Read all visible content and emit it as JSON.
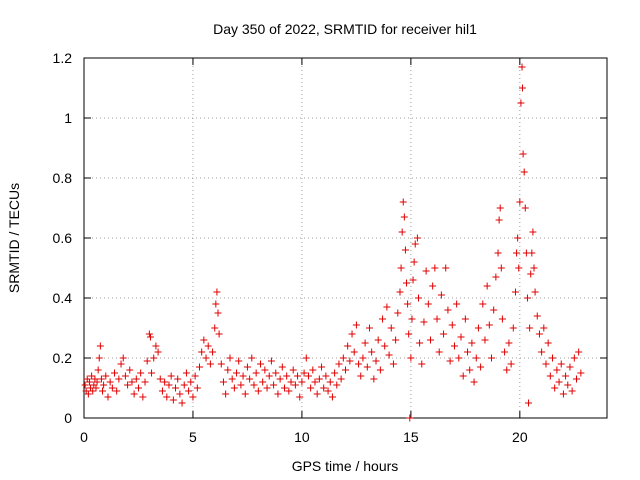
{
  "chart_data": {
    "type": "scatter",
    "title": "Day 350 of 2022, SRMTID for receiver hil1",
    "xlabel": "GPS time / hours",
    "ylabel": "SRMTID / TECUs",
    "xlim": [
      0,
      24
    ],
    "ylim": [
      0,
      1.2
    ],
    "xticks": [
      0,
      5,
      10,
      15,
      20
    ],
    "yticks": [
      0,
      0.2,
      0.4,
      0.6,
      0.8,
      1,
      1.2
    ],
    "ytick_labels": [
      "0",
      "0.2",
      "0.4",
      "0.6",
      "0.8",
      "1",
      "1.2"
    ],
    "grid": true,
    "marker": "plus",
    "color": "#e00000",
    "series": [
      {
        "name": "hil1",
        "points": [
          [
            0.05,
            0.11
          ],
          [
            0.1,
            0.09
          ],
          [
            0.15,
            0.13
          ],
          [
            0.2,
            0.08
          ],
          [
            0.25,
            0.12
          ],
          [
            0.3,
            0.1
          ],
          [
            0.35,
            0.14
          ],
          [
            0.4,
            0.09
          ],
          [
            0.45,
            0.11
          ],
          [
            0.5,
            0.13
          ],
          [
            0.55,
            0.1
          ],
          [
            0.6,
            0.12
          ],
          [
            0.65,
            0.16
          ],
          [
            0.7,
            0.2
          ],
          [
            0.75,
            0.24
          ],
          [
            0.8,
            0.13
          ],
          [
            0.85,
            0.09
          ],
          [
            0.9,
            0.11
          ],
          [
            1.0,
            0.14
          ],
          [
            1.1,
            0.07
          ],
          [
            1.2,
            0.12
          ],
          [
            1.3,
            0.1
          ],
          [
            1.4,
            0.15
          ],
          [
            1.5,
            0.09
          ],
          [
            1.6,
            0.13
          ],
          [
            1.7,
            0.18
          ],
          [
            1.8,
            0.2
          ],
          [
            1.9,
            0.14
          ],
          [
            2.0,
            0.11
          ],
          [
            2.1,
            0.16
          ],
          [
            2.2,
            0.12
          ],
          [
            2.3,
            0.08
          ],
          [
            2.4,
            0.13
          ],
          [
            2.5,
            0.1
          ],
          [
            2.6,
            0.15
          ],
          [
            2.7,
            0.07
          ],
          [
            2.8,
            0.12
          ],
          [
            2.9,
            0.19
          ],
          [
            3.0,
            0.28
          ],
          [
            3.05,
            0.27
          ],
          [
            3.1,
            0.15
          ],
          [
            3.2,
            0.2
          ],
          [
            3.3,
            0.24
          ],
          [
            3.4,
            0.22
          ],
          [
            3.5,
            0.13
          ],
          [
            3.6,
            0.09
          ],
          [
            3.7,
            0.12
          ],
          [
            3.8,
            0.07
          ],
          [
            3.9,
            0.11
          ],
          [
            4.0,
            0.14
          ],
          [
            4.1,
            0.06
          ],
          [
            4.2,
            0.1
          ],
          [
            4.3,
            0.13
          ],
          [
            4.4,
            0.08
          ],
          [
            4.5,
            0.05
          ],
          [
            4.6,
            0.11
          ],
          [
            4.7,
            0.15
          ],
          [
            4.8,
            0.09
          ],
          [
            4.9,
            0.12
          ],
          [
            5.0,
            0.07
          ],
          [
            5.1,
            0.14
          ],
          [
            5.2,
            0.1
          ],
          [
            5.3,
            0.17
          ],
          [
            5.4,
            0.22
          ],
          [
            5.5,
            0.26
          ],
          [
            5.6,
            0.2
          ],
          [
            5.7,
            0.24
          ],
          [
            5.8,
            0.18
          ],
          [
            5.9,
            0.22
          ],
          [
            6.0,
            0.3
          ],
          [
            6.05,
            0.38
          ],
          [
            6.1,
            0.42
          ],
          [
            6.15,
            0.35
          ],
          [
            6.2,
            0.28
          ],
          [
            6.3,
            0.18
          ],
          [
            6.4,
            0.12
          ],
          [
            6.5,
            0.08
          ],
          [
            6.6,
            0.16
          ],
          [
            6.7,
            0.2
          ],
          [
            6.8,
            0.13
          ],
          [
            6.9,
            0.1
          ],
          [
            7.0,
            0.15
          ],
          [
            7.1,
            0.19
          ],
          [
            7.2,
            0.11
          ],
          [
            7.3,
            0.14
          ],
          [
            7.4,
            0.08
          ],
          [
            7.5,
            0.17
          ],
          [
            7.6,
            0.13
          ],
          [
            7.7,
            0.2
          ],
          [
            7.8,
            0.11
          ],
          [
            7.9,
            0.15
          ],
          [
            8.0,
            0.09
          ],
          [
            8.1,
            0.18
          ],
          [
            8.2,
            0.12
          ],
          [
            8.3,
            0.16
          ],
          [
            8.4,
            0.1
          ],
          [
            8.5,
            0.14
          ],
          [
            8.6,
            0.19
          ],
          [
            8.7,
            0.11
          ],
          [
            8.8,
            0.15
          ],
          [
            8.9,
            0.08
          ],
          [
            9.0,
            0.13
          ],
          [
            9.1,
            0.17
          ],
          [
            9.2,
            0.1
          ],
          [
            9.3,
            0.14
          ],
          [
            9.4,
            0.09
          ],
          [
            9.5,
            0.12
          ],
          [
            9.6,
            0.16
          ],
          [
            9.7,
            0.11
          ],
          [
            9.8,
            0.14
          ],
          [
            9.9,
            0.07
          ],
          [
            10.0,
            0.12
          ],
          [
            10.1,
            0.15
          ],
          [
            10.2,
            0.2
          ],
          [
            10.3,
            0.14
          ],
          [
            10.4,
            0.1
          ],
          [
            10.5,
            0.16
          ],
          [
            10.6,
            0.12
          ],
          [
            10.7,
            0.08
          ],
          [
            10.8,
            0.13
          ],
          [
            10.9,
            0.17
          ],
          [
            11.0,
            0.1
          ],
          [
            11.1,
            0.14
          ],
          [
            11.2,
            0.09
          ],
          [
            11.3,
            0.12
          ],
          [
            11.4,
            0.07
          ],
          [
            11.5,
            0.15
          ],
          [
            11.6,
            0.11
          ],
          [
            11.7,
            0.18
          ],
          [
            11.8,
            0.13
          ],
          [
            11.9,
            0.2
          ],
          [
            12.0,
            0.16
          ],
          [
            12.1,
            0.24
          ],
          [
            12.2,
            0.19
          ],
          [
            12.3,
            0.28
          ],
          [
            12.4,
            0.22
          ],
          [
            12.5,
            0.31
          ],
          [
            12.6,
            0.18
          ],
          [
            12.7,
            0.14
          ],
          [
            12.8,
            0.2
          ],
          [
            12.9,
            0.25
          ],
          [
            13.0,
            0.17
          ],
          [
            13.1,
            0.3
          ],
          [
            13.2,
            0.22
          ],
          [
            13.3,
            0.13
          ],
          [
            13.4,
            0.19
          ],
          [
            13.5,
            0.26
          ],
          [
            13.6,
            0.16
          ],
          [
            13.7,
            0.33
          ],
          [
            13.8,
            0.24
          ],
          [
            13.9,
            0.37
          ],
          [
            14.0,
            0.21
          ],
          [
            14.1,
            0.3
          ],
          [
            14.2,
            0.18
          ],
          [
            14.3,
            0.26
          ],
          [
            14.4,
            0.35
          ],
          [
            14.5,
            0.42
          ],
          [
            14.55,
            0.5
          ],
          [
            14.6,
            0.62
          ],
          [
            14.65,
            0.72
          ],
          [
            14.7,
            0.67
          ],
          [
            14.75,
            0.56
          ],
          [
            14.8,
            0.45
          ],
          [
            14.85,
            0.38
          ],
          [
            14.9,
            0.28
          ],
          [
            14.95,
            0.0
          ],
          [
            15.0,
            0.2
          ],
          [
            15.05,
            0.33
          ],
          [
            15.1,
            0.46
          ],
          [
            15.15,
            0.52
          ],
          [
            15.2,
            0.58
          ],
          [
            15.3,
            0.6
          ],
          [
            15.35,
            0.4
          ],
          [
            15.4,
            0.25
          ],
          [
            15.5,
            0.18
          ],
          [
            15.6,
            0.32
          ],
          [
            15.7,
            0.49
          ],
          [
            15.8,
            0.38
          ],
          [
            15.9,
            0.26
          ],
          [
            16.0,
            0.44
          ],
          [
            16.1,
            0.5
          ],
          [
            16.2,
            0.33
          ],
          [
            16.3,
            0.22
          ],
          [
            16.4,
            0.41
          ],
          [
            16.5,
            0.28
          ],
          [
            16.6,
            0.5
          ],
          [
            16.7,
            0.36
          ],
          [
            16.8,
            0.19
          ],
          [
            16.9,
            0.31
          ],
          [
            17.0,
            0.24
          ],
          [
            17.1,
            0.38
          ],
          [
            17.2,
            0.2
          ],
          [
            17.3,
            0.27
          ],
          [
            17.4,
            0.14
          ],
          [
            17.5,
            0.33
          ],
          [
            17.6,
            0.22
          ],
          [
            17.7,
            0.16
          ],
          [
            17.8,
            0.25
          ],
          [
            17.9,
            0.12
          ],
          [
            18.0,
            0.2
          ],
          [
            18.1,
            0.3
          ],
          [
            18.2,
            0.17
          ],
          [
            18.3,
            0.38
          ],
          [
            18.4,
            0.26
          ],
          [
            18.5,
            0.44
          ],
          [
            18.6,
            0.31
          ],
          [
            18.7,
            0.2
          ],
          [
            18.8,
            0.36
          ],
          [
            18.9,
            0.47
          ],
          [
            19.0,
            0.55
          ],
          [
            19.05,
            0.66
          ],
          [
            19.1,
            0.7
          ],
          [
            19.15,
            0.5
          ],
          [
            19.2,
            0.33
          ],
          [
            19.3,
            0.22
          ],
          [
            19.4,
            0.16
          ],
          [
            19.5,
            0.25
          ],
          [
            19.6,
            0.18
          ],
          [
            19.7,
            0.3
          ],
          [
            19.8,
            0.42
          ],
          [
            19.85,
            0.55
          ],
          [
            19.9,
            0.6
          ],
          [
            19.95,
            0.5
          ],
          [
            20.0,
            0.72
          ],
          [
            20.05,
            1.05
          ],
          [
            20.1,
            1.17
          ],
          [
            20.12,
            1.1
          ],
          [
            20.15,
            0.88
          ],
          [
            20.2,
            0.82
          ],
          [
            20.25,
            0.7
          ],
          [
            20.3,
            0.55
          ],
          [
            20.35,
            0.4
          ],
          [
            20.4,
            0.05
          ],
          [
            20.45,
            0.3
          ],
          [
            20.5,
            0.48
          ],
          [
            20.55,
            0.55
          ],
          [
            20.6,
            0.62
          ],
          [
            20.65,
            0.5
          ],
          [
            20.7,
            0.42
          ],
          [
            20.8,
            0.34
          ],
          [
            20.9,
            0.28
          ],
          [
            21.0,
            0.22
          ],
          [
            21.1,
            0.3
          ],
          [
            21.2,
            0.18
          ],
          [
            21.3,
            0.25
          ],
          [
            21.4,
            0.14
          ],
          [
            21.5,
            0.2
          ],
          [
            21.6,
            0.1
          ],
          [
            21.7,
            0.16
          ],
          [
            21.8,
            0.12
          ],
          [
            21.9,
            0.18
          ],
          [
            22.0,
            0.08
          ],
          [
            22.1,
            0.14
          ],
          [
            22.2,
            0.11
          ],
          [
            22.3,
            0.17
          ],
          [
            22.4,
            0.09
          ],
          [
            22.5,
            0.2
          ],
          [
            22.6,
            0.13
          ],
          [
            22.7,
            0.22
          ],
          [
            22.8,
            0.15
          ]
        ]
      }
    ]
  }
}
